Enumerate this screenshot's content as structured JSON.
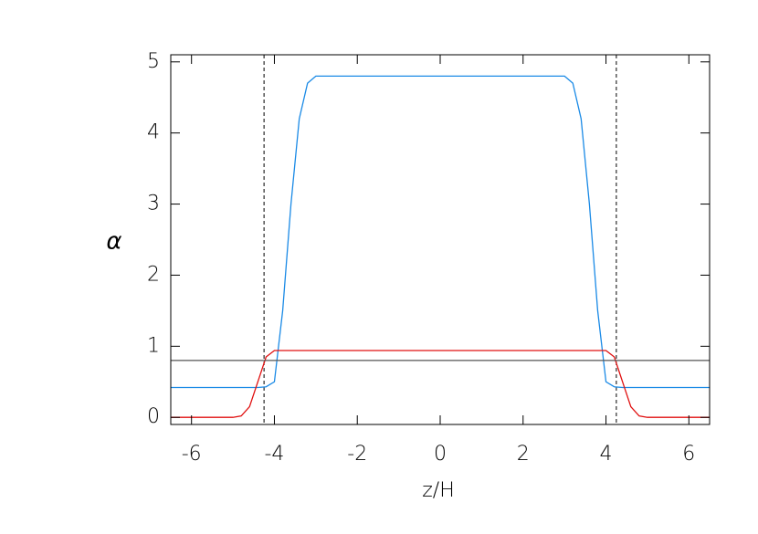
{
  "chart_data": {
    "type": "line",
    "x_label": "z/H",
    "y_label": "α",
    "x": [
      -6.5,
      -5,
      -4.8,
      -4.6,
      -4.4,
      -4.2,
      -4,
      -3.8,
      -3.6,
      -3.4,
      -3.2,
      -3,
      3,
      3.2,
      3.4,
      3.6,
      3.8,
      4,
      4.2,
      4.4,
      4.6,
      4.8,
      5,
      6.5
    ],
    "series": [
      {
        "color": "#1a8ae6",
        "values": [
          0.42,
          0.42,
          0.42,
          0.42,
          0.42,
          0.43,
          0.5,
          1.5,
          3.0,
          4.2,
          4.7,
          4.8,
          4.8,
          4.7,
          4.2,
          3.0,
          1.5,
          0.5,
          0.43,
          0.42,
          0.42,
          0.42,
          0.42,
          0.42
        ]
      },
      {
        "color": "#e01010",
        "values": [
          0,
          0,
          0.02,
          0.15,
          0.5,
          0.85,
          0.94,
          0.94,
          0.94,
          0.94,
          0.94,
          0.94,
          0.94,
          0.94,
          0.94,
          0.94,
          0.94,
          0.94,
          0.85,
          0.5,
          0.15,
          0.02,
          0,
          0
        ]
      },
      {
        "color": "#555555",
        "values": [
          0.8,
          0.8,
          0.8,
          0.8,
          0.8,
          0.8,
          0.8,
          0.8,
          0.8,
          0.8,
          0.8,
          0.8,
          0.8,
          0.8,
          0.8,
          0.8,
          0.8,
          0.8,
          0.8,
          0.8,
          0.8,
          0.8,
          0.8,
          0.8
        ]
      }
    ],
    "vlines": [
      -4.25,
      4.25
    ],
    "xlim": [
      -6.5,
      6.5
    ],
    "xticks": [
      -6,
      -4,
      -2,
      0,
      2,
      4,
      6
    ],
    "ylim": [
      -0.1,
      5.1
    ],
    "yticks": [
      0,
      1,
      2,
      3,
      4,
      5
    ]
  }
}
